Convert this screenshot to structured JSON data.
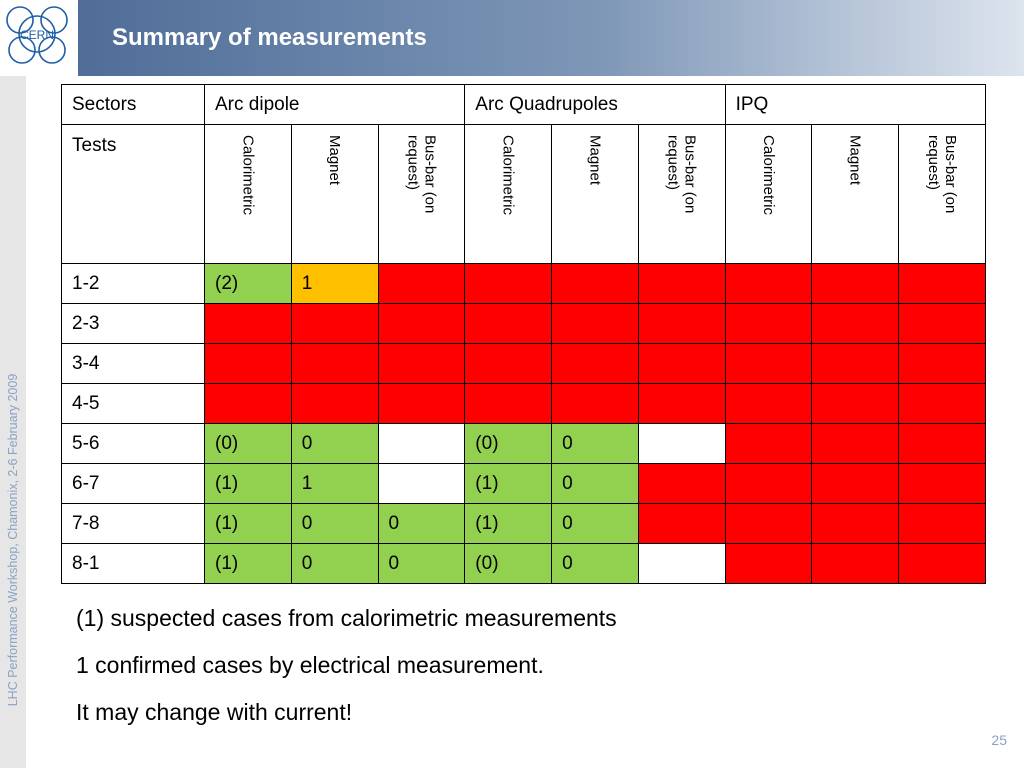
{
  "header": {
    "title": "Summary of measurements",
    "logo_text": "CERN"
  },
  "sidebar": {
    "text": "LHC Performance Workshop, Chamonix, 2-6 February 2009"
  },
  "table": {
    "groups": [
      "Sectors",
      "Arc dipole",
      "Arc Quadrupoles",
      "IPQ"
    ],
    "tests_label": "Tests",
    "subheaders": [
      "Calorimetric",
      "Magnet",
      "Bus-bar (on request)",
      "Calorimetric",
      "Magnet",
      "Bus-bar (on request)",
      "Calorimetric",
      "Magnet",
      "Bus-bar (on request)"
    ],
    "rows": [
      {
        "sector": "1-2",
        "cells": [
          {
            "text": "(2)",
            "color": "green"
          },
          {
            "text": "1",
            "color": "amber"
          },
          {
            "text": "",
            "color": "red"
          },
          {
            "text": "",
            "color": "red"
          },
          {
            "text": "",
            "color": "red"
          },
          {
            "text": "",
            "color": "red"
          },
          {
            "text": "",
            "color": "red"
          },
          {
            "text": "",
            "color": "red"
          },
          {
            "text": "",
            "color": "red"
          }
        ]
      },
      {
        "sector": "2-3",
        "cells": [
          {
            "text": "",
            "color": "red"
          },
          {
            "text": "",
            "color": "red"
          },
          {
            "text": "",
            "color": "red"
          },
          {
            "text": "",
            "color": "red"
          },
          {
            "text": "",
            "color": "red"
          },
          {
            "text": "",
            "color": "red"
          },
          {
            "text": "",
            "color": "red"
          },
          {
            "text": "",
            "color": "red"
          },
          {
            "text": "",
            "color": "red"
          }
        ]
      },
      {
        "sector": "3-4",
        "cells": [
          {
            "text": "",
            "color": "red"
          },
          {
            "text": "",
            "color": "red"
          },
          {
            "text": "",
            "color": "red"
          },
          {
            "text": "",
            "color": "red"
          },
          {
            "text": "",
            "color": "red"
          },
          {
            "text": "",
            "color": "red"
          },
          {
            "text": "",
            "color": "red"
          },
          {
            "text": "",
            "color": "red"
          },
          {
            "text": "",
            "color": "red"
          }
        ]
      },
      {
        "sector": "4-5",
        "cells": [
          {
            "text": "",
            "color": "red"
          },
          {
            "text": "",
            "color": "red"
          },
          {
            "text": "",
            "color": "red"
          },
          {
            "text": "",
            "color": "red"
          },
          {
            "text": "",
            "color": "red"
          },
          {
            "text": "",
            "color": "red"
          },
          {
            "text": "",
            "color": "red"
          },
          {
            "text": "",
            "color": "red"
          },
          {
            "text": "",
            "color": "red"
          }
        ]
      },
      {
        "sector": "5-6",
        "cells": [
          {
            "text": "(0)",
            "color": "green"
          },
          {
            "text": "0",
            "color": "green"
          },
          {
            "text": "",
            "color": "white"
          },
          {
            "text": "(0)",
            "color": "green"
          },
          {
            "text": "0",
            "color": "green"
          },
          {
            "text": "",
            "color": "white"
          },
          {
            "text": "",
            "color": "red"
          },
          {
            "text": "",
            "color": "red"
          },
          {
            "text": "",
            "color": "red"
          }
        ]
      },
      {
        "sector": "6-7",
        "cells": [
          {
            "text": "(1)",
            "color": "green"
          },
          {
            "text": "1",
            "color": "green"
          },
          {
            "text": "",
            "color": "white"
          },
          {
            "text": "(1)",
            "color": "green"
          },
          {
            "text": "0",
            "color": "green"
          },
          {
            "text": "",
            "color": "red"
          },
          {
            "text": "",
            "color": "red"
          },
          {
            "text": "",
            "color": "red"
          },
          {
            "text": "",
            "color": "red"
          }
        ]
      },
      {
        "sector": "7-8",
        "cells": [
          {
            "text": "(1)",
            "color": "green"
          },
          {
            "text": "0",
            "color": "green"
          },
          {
            "text": "0",
            "color": "green"
          },
          {
            "text": "(1)",
            "color": "green"
          },
          {
            "text": "0",
            "color": "green"
          },
          {
            "text": "",
            "color": "red"
          },
          {
            "text": "",
            "color": "red"
          },
          {
            "text": "",
            "color": "red"
          },
          {
            "text": "",
            "color": "red"
          }
        ]
      },
      {
        "sector": "8-1",
        "cells": [
          {
            "text": "(1)",
            "color": "green"
          },
          {
            "text": "0",
            "color": "green"
          },
          {
            "text": "0",
            "color": "green"
          },
          {
            "text": "(0)",
            "color": "green"
          },
          {
            "text": "0",
            "color": "green"
          },
          {
            "text": "",
            "color": "white"
          },
          {
            "text": "",
            "color": "red"
          },
          {
            "text": "",
            "color": "red"
          },
          {
            "text": "",
            "color": "red"
          }
        ]
      }
    ]
  },
  "notes": [
    "(1) suspected cases from calorimetric measurements",
    "1 confirmed cases by electrical measurement.",
    "It may change with current!"
  ],
  "footer": {
    "page_number": "25"
  },
  "colors": {
    "green": "#92d050",
    "amber": "#ffc000",
    "red": "#ff0000",
    "white": "#ffffff",
    "header_dark": "#4f6d98",
    "accent_text": "#8aa3c4"
  }
}
